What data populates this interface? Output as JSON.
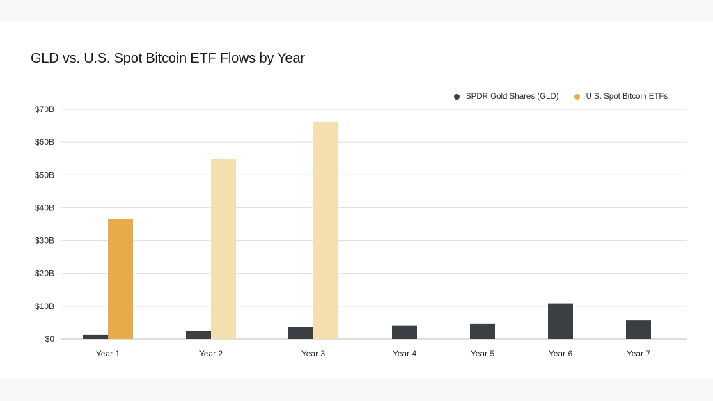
{
  "chart_data": {
    "type": "bar",
    "title": "GLD vs. U.S. Spot Bitcoin ETF Flows by Year",
    "xlabel": "",
    "ylabel": "",
    "categories": [
      "Year 1",
      "Year 2",
      "Year 3",
      "Year 4",
      "Year 5",
      "Year 6",
      "Year 7"
    ],
    "ylim": [
      0,
      70
    ],
    "yticks": [
      0,
      10,
      20,
      30,
      40,
      50,
      60,
      70
    ],
    "ytick_labels": [
      "$0",
      "$10B",
      "$20B",
      "$30B",
      "$40B",
      "$50B",
      "$60B",
      "$70B"
    ],
    "grid": true,
    "legend_position": "top-right",
    "series": [
      {
        "name": "SPDR Gold Shares (GLD)",
        "color": "#3a3f44",
        "values": [
          1.3,
          2.5,
          3.7,
          4.1,
          4.7,
          10.9,
          5.7
        ]
      },
      {
        "name": "U.S. Spot Bitcoin ETFs",
        "color": "#e8ab47",
        "values": [
          36.5,
          54.9,
          66.2,
          null,
          null,
          null,
          null
        ],
        "bar_colors": [
          "#e8ab47",
          "#f5deb0",
          "#f5deb0",
          null,
          null,
          null,
          null
        ]
      }
    ]
  }
}
